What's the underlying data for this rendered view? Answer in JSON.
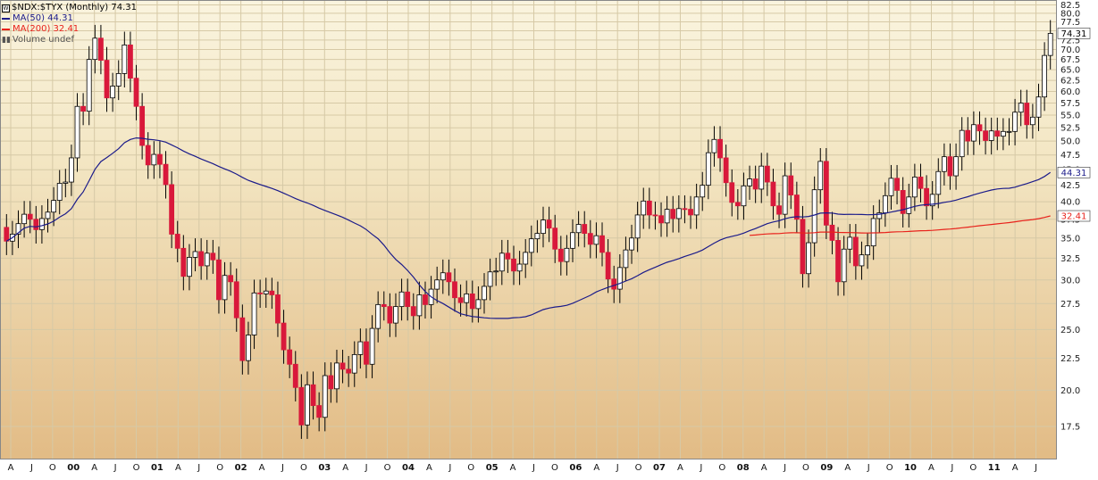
{
  "chart_data": {
    "type": "candlestick",
    "title": "$NDX:$TYX (Monthly) 74.31",
    "legend": [
      {
        "label": "MA(50) 44.31",
        "color": "#1b1b8a"
      },
      {
        "label": "MA(200) 32.41",
        "color": "#e8221b"
      },
      {
        "label": "Volume undef",
        "color": "#555555"
      }
    ],
    "yscale": "log",
    "ylim": [
      15.5,
      84
    ],
    "yticks": [
      "17.5",
      "20.0",
      "22.5",
      "25.0",
      "27.5",
      "30.0",
      "32.5",
      "35.0",
      "37.5",
      "40.0",
      "42.5",
      "45.0",
      "47.5",
      "50.0",
      "52.5",
      "55.0",
      "57.5",
      "60.0",
      "62.5",
      "65.0",
      "67.5",
      "70.0",
      "72.5",
      "75.0",
      "77.5",
      "80.0",
      "82.5"
    ],
    "last_value_label": "74.31",
    "ma50_label": "44.31",
    "ma200_label": "32.41",
    "x_labels": [
      "A",
      "J",
      "O",
      "00",
      "A",
      "J",
      "O",
      "01",
      "A",
      "J",
      "O",
      "02",
      "A",
      "J",
      "O",
      "03",
      "A",
      "J",
      "O",
      "04",
      "A",
      "J",
      "O",
      "05",
      "A",
      "J",
      "O",
      "06",
      "A",
      "J",
      "O",
      "07",
      "A",
      "J",
      "O",
      "08",
      "A",
      "J",
      "O",
      "09",
      "A",
      "J",
      "O",
      "10",
      "A",
      "J",
      "O",
      "11",
      "A",
      "J"
    ],
    "colors": {
      "up": "#ffffff",
      "down_bull": "#000000",
      "down": "#d9183b",
      "bg_top": "#faf4df",
      "bg_bottom": "#e2bb85",
      "grid": "#d6c9a6",
      "ma50": "#1b1b8a",
      "ma200": "#e8221b"
    },
    "candles_close": [
      34.6,
      35.5,
      36.9,
      38.2,
      37.5,
      36.1,
      37.6,
      38.5,
      40.2,
      42.8,
      43.0,
      47.0,
      56.8,
      55.8,
      67.5,
      73.0,
      67.3,
      58.6,
      61.2,
      64.1,
      71.2,
      63.0,
      56.8,
      49.2,
      45.8,
      47.6,
      45.9,
      42.6,
      35.5,
      33.7,
      30.4,
      32.6,
      33.3,
      31.6,
      33.1,
      32.3,
      27.9,
      30.5,
      29.8,
      26.1,
      22.3,
      24.5,
      28.6,
      28.5,
      28.8,
      28.4,
      25.6,
      23.2,
      22.0,
      20.2,
      17.6,
      20.4,
      18.9,
      18.1,
      21.1,
      20.1,
      22.1,
      21.6,
      21.3,
      22.8,
      23.9,
      22.0,
      25.1,
      27.4,
      27.2,
      25.6,
      27.2,
      28.7,
      27.2,
      26.3,
      28.4,
      27.4,
      29.0,
      30.0,
      30.8,
      29.8,
      28.1,
      27.6,
      28.5,
      27.0,
      27.9,
      29.3,
      30.9,
      31.0,
      33.1,
      32.4,
      31.0,
      31.8,
      33.2,
      34.9,
      35.6,
      37.4,
      36.3,
      33.6,
      32.1,
      33.7,
      35.7,
      36.8,
      35.6,
      34.2,
      35.3,
      33.2,
      30.1,
      29.0,
      31.4,
      33.5,
      35.0,
      38.1,
      40.1,
      38.1,
      38.0,
      37.0,
      38.9,
      37.6,
      39.0,
      38.9,
      38.1,
      40.7,
      42.5,
      47.9,
      50.3,
      47.0,
      42.9,
      39.9,
      39.4,
      42.4,
      43.5,
      41.9,
      45.6,
      43.0,
      39.4,
      38.2,
      44.0,
      41.0,
      37.5,
      30.7,
      34.4,
      41.8,
      46.4,
      36.7,
      34.7,
      29.8,
      33.6,
      35.1,
      31.6,
      32.9,
      34.0,
      37.6,
      38.4,
      40.9,
      43.6,
      41.7,
      38.3,
      40.7,
      43.8,
      42.0,
      39.4,
      41.1,
      44.7,
      47.2,
      44.0,
      47.2,
      52.0,
      50.0,
      53.1,
      51.9,
      50.1,
      51.9,
      50.9,
      51.8,
      51.8,
      55.6,
      57.5,
      53.1,
      54.6,
      58.8,
      68.5,
      74.3
    ],
    "candles_open": [
      36.4,
      34.6,
      35.5,
      36.9,
      38.2,
      37.5,
      36.1,
      37.6,
      38.5,
      40.2,
      42.8,
      43.0,
      47.0,
      56.8,
      55.8,
      67.5,
      73.0,
      67.3,
      58.6,
      61.2,
      64.1,
      71.2,
      63.0,
      56.8,
      49.2,
      45.8,
      47.6,
      45.9,
      42.6,
      35.5,
      33.7,
      30.4,
      32.6,
      33.3,
      31.6,
      33.1,
      32.3,
      27.9,
      30.5,
      29.8,
      26.1,
      22.3,
      24.5,
      28.6,
      28.5,
      28.8,
      28.4,
      25.6,
      23.2,
      22.0,
      20.2,
      17.6,
      20.4,
      18.9,
      18.1,
      21.1,
      20.1,
      22.1,
      21.6,
      21.3,
      22.8,
      23.9,
      22.0,
      25.1,
      27.4,
      27.2,
      25.6,
      27.2,
      28.7,
      27.2,
      26.3,
      28.4,
      27.4,
      29.0,
      30.0,
      30.8,
      29.8,
      28.1,
      27.6,
      28.5,
      27.0,
      27.9,
      29.3,
      30.9,
      31.0,
      33.1,
      32.4,
      31.0,
      31.8,
      33.2,
      34.9,
      35.6,
      37.4,
      36.3,
      33.6,
      32.1,
      33.7,
      35.7,
      36.8,
      35.6,
      34.2,
      35.3,
      33.2,
      30.1,
      29.0,
      31.4,
      33.5,
      35.0,
      38.1,
      40.1,
      38.1,
      38.0,
      37.0,
      38.9,
      37.6,
      39.0,
      38.9,
      38.1,
      40.7,
      42.5,
      47.9,
      50.3,
      47.0,
      42.9,
      39.9,
      39.4,
      42.4,
      43.5,
      41.9,
      45.6,
      43.0,
      39.4,
      38.2,
      44.0,
      41.0,
      37.5,
      30.7,
      34.4,
      41.8,
      46.4,
      36.7,
      34.7,
      29.8,
      33.6,
      35.1,
      31.6,
      32.9,
      34.0,
      37.6,
      38.4,
      40.9,
      43.6,
      41.7,
      38.3,
      40.7,
      43.8,
      42.0,
      39.4,
      41.1,
      44.7,
      47.2,
      44.0,
      47.2,
      52.0,
      50.0,
      53.1,
      51.9,
      50.1,
      51.9,
      50.9,
      51.8,
      51.8,
      55.6,
      57.5,
      53.1,
      54.6,
      58.8,
      68.5
    ]
  }
}
